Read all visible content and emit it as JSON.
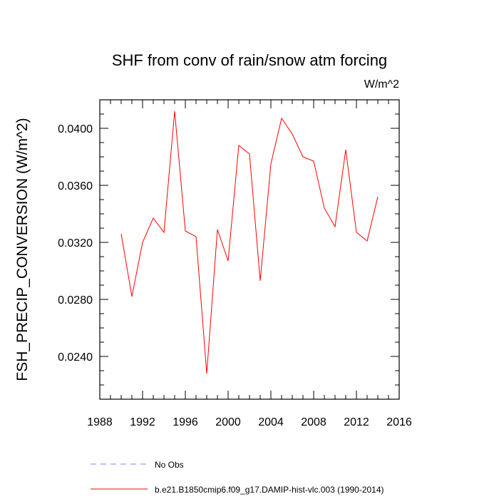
{
  "chart_data": {
    "type": "line",
    "title": "SHF from conv of rain/snow atm forcing",
    "units": "W/m^2",
    "ylabel": "FSH_PRECIP_CONVERSION  (W/m^2)",
    "xlabel": "",
    "xlim": [
      1988,
      2016
    ],
    "ylim": [
      0.021,
      0.042
    ],
    "x_ticks": [
      "1988",
      "1992",
      "1996",
      "2000",
      "2004",
      "2008",
      "2012",
      "2016"
    ],
    "y_ticks": [
      "0.0240",
      "0.0280",
      "0.0320",
      "0.0360",
      "0.0400"
    ],
    "grid": false,
    "legend_position": "bottom",
    "series": [
      {
        "name": "b.e21.B1850cmip6.f09_g17.DAMIP-hist-vlc.003 (1990-2014)",
        "color": "#ff0000",
        "style": "solid",
        "x": [
          1990,
          1991,
          1992,
          1993,
          1994,
          1995,
          1996,
          1997,
          1998,
          1999,
          2000,
          2001,
          2002,
          2003,
          2004,
          2005,
          2006,
          2007,
          2008,
          2009,
          2010,
          2011,
          2012,
          2013,
          2014
        ],
        "values": [
          0.0326,
          0.0282,
          0.032,
          0.0337,
          0.0327,
          0.0412,
          0.0328,
          0.0324,
          0.0228,
          0.0329,
          0.0307,
          0.0388,
          0.0382,
          0.0293,
          0.0375,
          0.0407,
          0.0396,
          0.038,
          0.0377,
          0.0344,
          0.0331,
          0.0385,
          0.0327,
          0.0321,
          0.0352
        ]
      },
      {
        "name": "No Obs",
        "color": "#8080ff",
        "style": "dashed",
        "x": [],
        "values": []
      }
    ]
  }
}
